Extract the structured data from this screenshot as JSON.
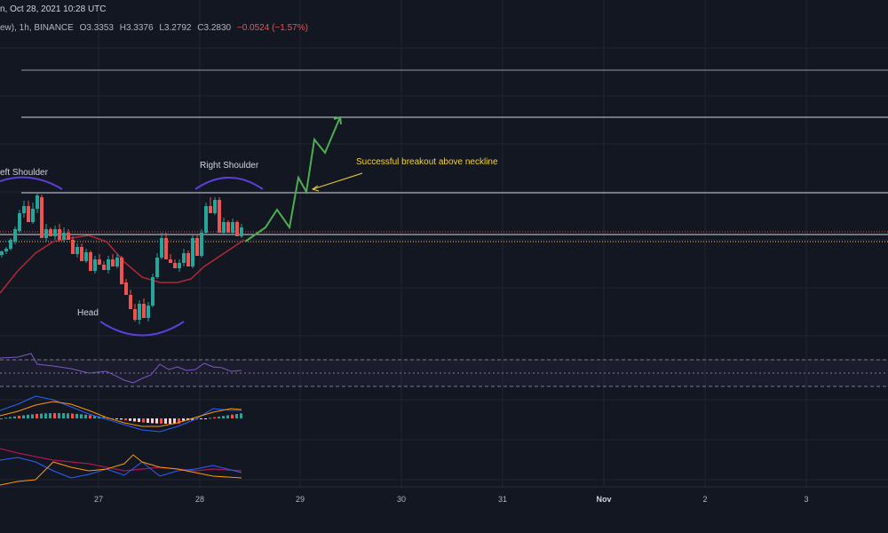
{
  "header": {
    "line1": "n, Oct 28, 2021 10:28 UTC",
    "line2_prefix": "ew), 1h, BINANCE",
    "open": "O3.3353",
    "high": "H3.3376",
    "low": "L3.2792",
    "close": "C3.2830",
    "change": "−0.0524 (−1.57%)"
  },
  "annotations": {
    "left_shoulder": "eft Shoulder",
    "right_shoulder": "Right Shoulder",
    "head": "Head",
    "breakout": "Successful breakout above neckline"
  },
  "x_axis": {
    "ticks": [
      "27",
      "28",
      "29",
      "30",
      "31",
      "Nov",
      "2",
      "3"
    ]
  },
  "colors": {
    "background": "#131722",
    "candle_up": "#26a69a",
    "candle_down": "#ef5350",
    "moving_average": "#b22833",
    "arc": "#5b3fd8",
    "projection": "#4caf50",
    "breakout_arrow": "#f5d33b",
    "rsi": "#7e57c2",
    "macd": "#2962ff",
    "signal": "#ff9800"
  },
  "chart_data": {
    "type": "candlestick",
    "symbol": "BINANCE, 1h",
    "last_bar": {
      "date": "Oct 28, 2021 10:28 UTC",
      "open": 3.3353,
      "high": 3.3376,
      "low": 3.2792,
      "close": 3.283,
      "change": -0.0524,
      "change_pct": -1.57
    },
    "x_ticks": [
      "27",
      "28",
      "29",
      "30",
      "31",
      "Nov",
      "2",
      "3"
    ],
    "pattern": "Head and Shoulders",
    "labels": [
      "Left Shoulder",
      "Head",
      "Right Shoulder"
    ],
    "panes": [
      "price",
      "rsi",
      "macd",
      "indicator"
    ]
  }
}
